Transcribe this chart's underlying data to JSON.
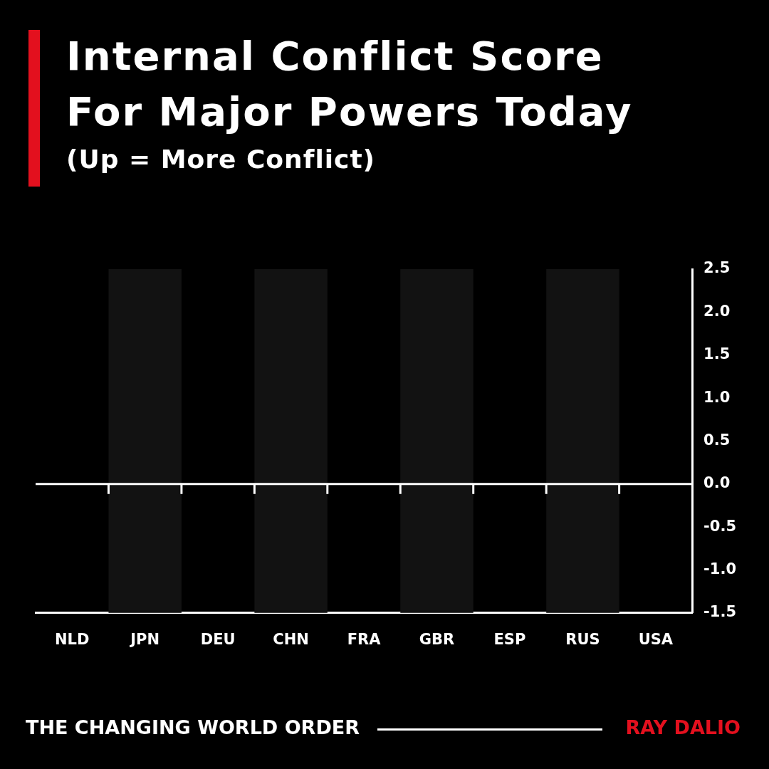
{
  "chart_data": {
    "type": "bar",
    "title": "Internal Conflict Score For Major Powers Today",
    "subtitle": "(Up = More Conflict)",
    "categories": [
      "NLD",
      "JPN",
      "DEU",
      "CHN",
      "FRA",
      "GBR",
      "ESP",
      "RUS",
      "USA"
    ],
    "values": [
      null,
      null,
      null,
      null,
      null,
      null,
      null,
      null,
      null
    ],
    "ylim": [
      -1.5,
      2.5
    ],
    "yticks": [
      -1.5,
      {
        "value": -1,
        "label": "-1.0"
      },
      -0.5,
      {
        "value": 0,
        "label": "0.0"
      },
      0.5,
      {
        "value": 1,
        "label": "1.0"
      },
      1.5,
      {
        "value": 2,
        "label": "2.0"
      },
      2.5
    ],
    "grid": false,
    "legend": false,
    "ref_lines": [
      {
        "axis": "y",
        "value": 0,
        "color": "#ffffff"
      }
    ],
    "bands": [
      {
        "axis": "x",
        "from": "JPN",
        "to": "JPN",
        "color": "#121212"
      },
      {
        "axis": "x",
        "from": "CHN",
        "to": "CHN",
        "color": "#121212"
      },
      {
        "axis": "x",
        "from": "GBR",
        "to": "GBR",
        "color": "#121212"
      },
      {
        "axis": "x",
        "from": "RUS",
        "to": "RUS",
        "color": "#121212"
      }
    ],
    "annotations": [
      "THE CHANGING WORLD ORDER",
      "RAY DALIO"
    ]
  }
}
